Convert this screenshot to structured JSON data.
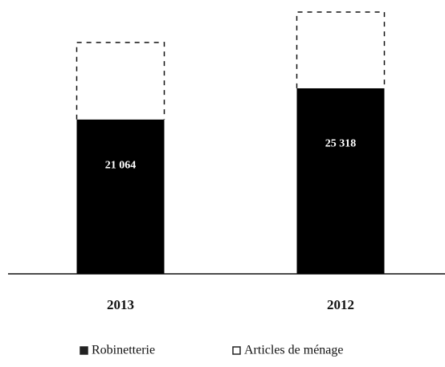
{
  "chart_data": {
    "type": "bar",
    "stacked": true,
    "categories": [
      "2013",
      "2012"
    ],
    "series": [
      {
        "name": "Robinetterie",
        "color": "#000000",
        "values": [
          21064,
          25318
        ],
        "value_labels": [
          "21 064",
          "25 318"
        ]
      },
      {
        "name": "Articles de ménage",
        "color": "#ffffff",
        "values": [
          10500,
          10400
        ]
      }
    ],
    "legend": "bottom"
  }
}
